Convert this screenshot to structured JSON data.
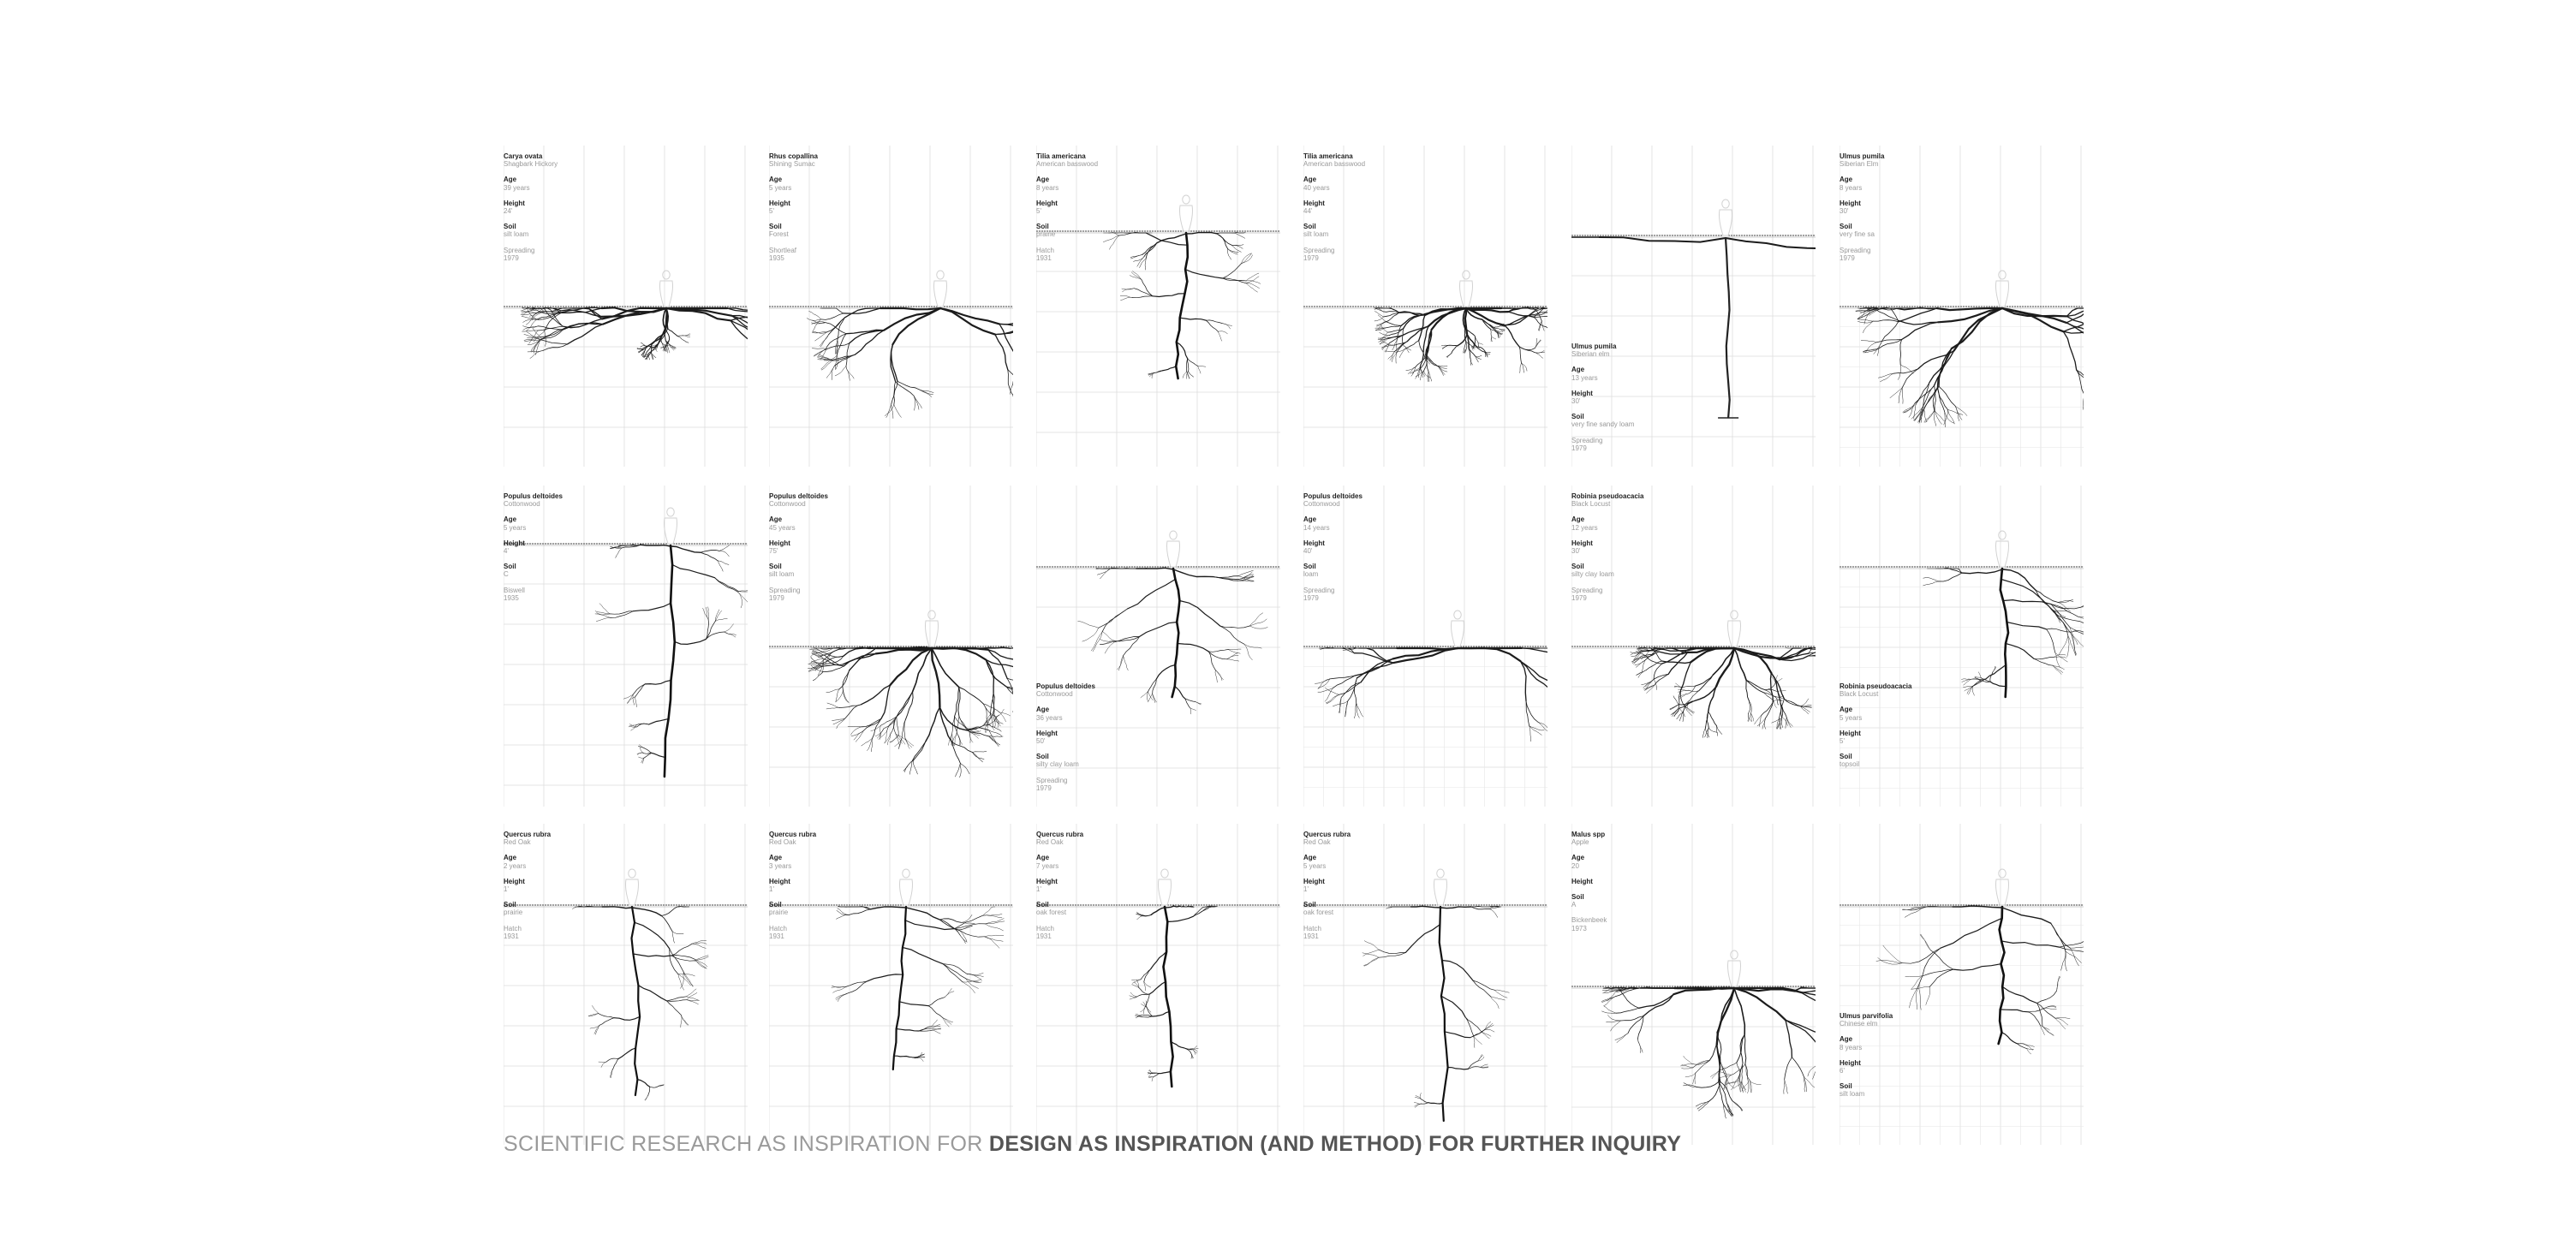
{
  "caption": {
    "light": "SCIENTIFIC RESEARCH AS INSPIRATION FOR",
    "bold": "DESIGN AS INSPIRATION (AND METHOD) FOR FURTHER INQUIRY"
  },
  "panels": [
    {
      "species": "Carya ovata",
      "common": "Shagbark Hickory",
      "age": "39 years",
      "height": "24'",
      "soil": "silt loam",
      "method": "Spreading",
      "year": "1979"
    },
    {
      "species": "Rhus copallina",
      "common": "Shining Sumac",
      "age": "5 years",
      "height": "5'",
      "soil": "Forest",
      "method": "Shortleaf",
      "year": "1935"
    },
    {
      "species": "Tilia americana",
      "common": "American basswood",
      "age": "8 years",
      "height": "5'",
      "soil": "prairie",
      "method": "Hatch",
      "year": "1931"
    },
    {
      "species": "Tilia americana",
      "common": "American basswood",
      "age": "40 years",
      "height": "44'",
      "soil": "silt loam",
      "method": "Spreading",
      "year": "1979"
    },
    {
      "species": "Ulmus pumila",
      "common": "Siberian elm",
      "age": "13 years",
      "height": "30'",
      "soil": "very fine sandy loam",
      "method": "Spreading",
      "year": "1979"
    },
    {
      "species": "Ulmus pumila",
      "common": "Siberian Elm",
      "age": "8 years",
      "height": "30'",
      "soil": "very fine sa",
      "method": "Spreading",
      "year": "1979"
    },
    {
      "species": "Populus deltoides",
      "common": "Cottonwood",
      "age": "5 years",
      "height": "4'",
      "soil": "C",
      "method": "Biswell",
      "year": "1935"
    },
    {
      "species": "Populus deltoides",
      "common": "Cottonwood",
      "age": "45 years",
      "height": "75'",
      "soil": "silt loam",
      "method": "Spreading",
      "year": "1979"
    },
    {
      "species": "Populus deltoides",
      "common": "Cottonwood",
      "age": "36 years",
      "height": "50'",
      "soil": "silty clay loam",
      "method": "Spreading",
      "year": "1979"
    },
    {
      "species": "Populus deltoides",
      "common": "Cottonwood",
      "age": "14 years",
      "height": "40'",
      "soil": "loam",
      "method": "Spreading",
      "year": "1979"
    },
    {
      "species": "Robinia pseudoacacia",
      "common": "Black Locust",
      "age": "12 years",
      "height": "30'",
      "soil": "silty clay loam",
      "method": "Spreading",
      "year": "1979"
    },
    {
      "species": "Robinia pseudoacacia",
      "common": "Black Locust",
      "age": "5 years",
      "height": "5'",
      "soil": "topsoil",
      "method": "",
      "year": ""
    },
    {
      "species": "Quercus rubra",
      "common": "Red Oak",
      "age": "2 years",
      "height": "1'",
      "soil": "prairie",
      "method": "Hatch",
      "year": "1931"
    },
    {
      "species": "Quercus rubra",
      "common": "Red Oak",
      "age": "3 years",
      "height": "1'",
      "soil": "prairie",
      "method": "Hatch",
      "year": "1931"
    },
    {
      "species": "Quercus rubra",
      "common": "Red Oak",
      "age": "7 years",
      "height": "1'",
      "soil": "oak forest",
      "method": "Hatch",
      "year": "1931"
    },
    {
      "species": "Quercus rubra",
      "common": "Red Oak",
      "age": "5 years",
      "height": "1'",
      "soil": "oak forest",
      "method": "Hatch",
      "year": "1931"
    },
    {
      "species": "Malus spp",
      "common": "Apple",
      "age": "20",
      "height": "",
      "soil": "A",
      "method": "Bickenbeek",
      "year": "1973"
    },
    {
      "species": "Ulmus parvifolia",
      "common": "Chinese elm",
      "age": "8 years",
      "height": "6'",
      "soil": "silt loam",
      "method": "",
      "year": ""
    }
  ]
}
